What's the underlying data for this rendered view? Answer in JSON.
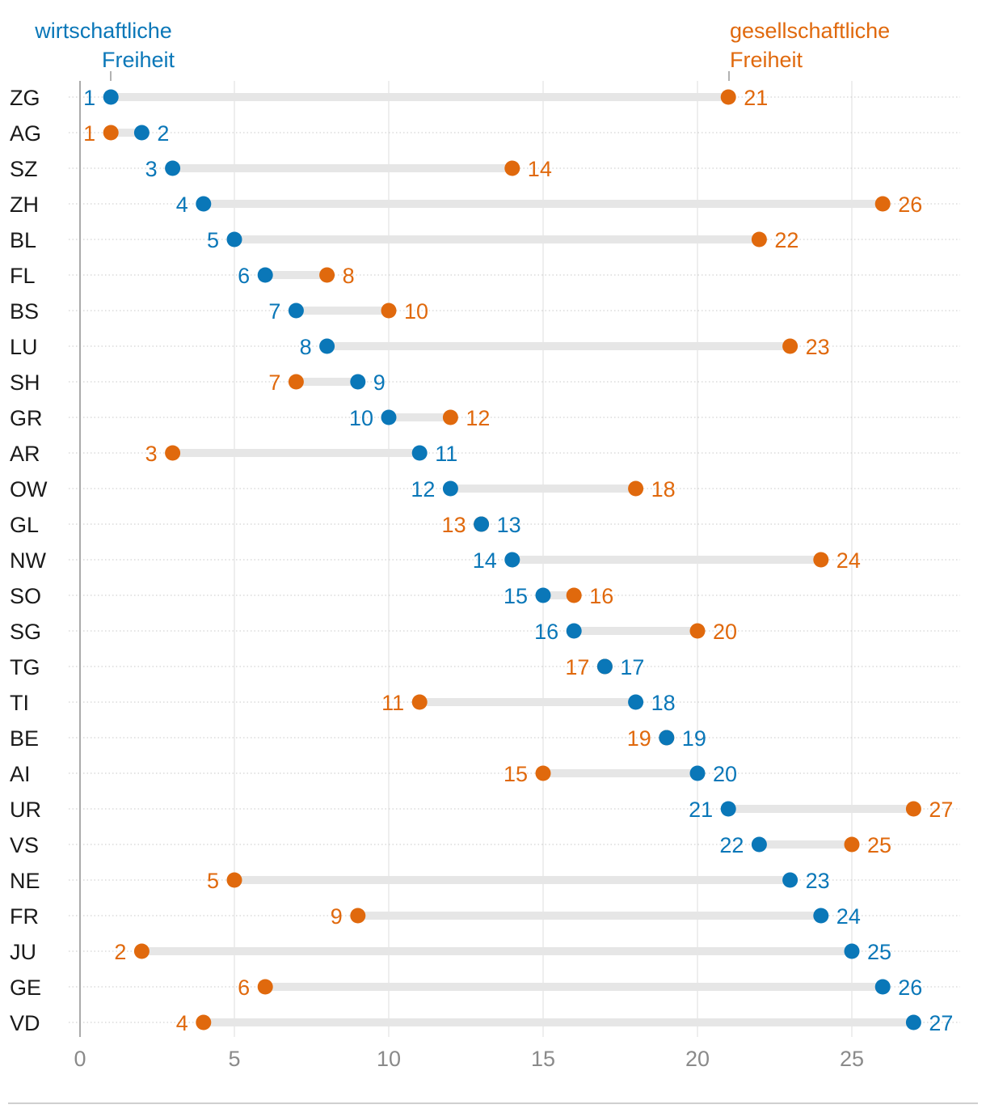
{
  "chart_data": {
    "type": "dumbbell",
    "title": "",
    "xlabel": "",
    "ylabel": "",
    "xlim": [
      0,
      28
    ],
    "xticks": [
      0,
      5,
      10,
      15,
      20,
      25
    ],
    "colors": {
      "economic": "#0a77b8",
      "social": "#e0690d",
      "connector": "#e6e6e6"
    },
    "legend": {
      "economic_line1": "wirtschaftliche",
      "economic_line2": "Freiheit",
      "social_line1": "gesellschaftliche",
      "social_line2": "Freiheit"
    },
    "series": [
      {
        "name": "wirtschaftliche Freiheit",
        "key": "economic"
      },
      {
        "name": "gesellschaftliche Freiheit",
        "key": "social"
      }
    ],
    "categories": [
      "ZG",
      "AG",
      "SZ",
      "ZH",
      "BL",
      "FL",
      "BS",
      "LU",
      "SH",
      "GR",
      "AR",
      "OW",
      "GL",
      "NW",
      "SO",
      "SG",
      "TG",
      "TI",
      "BE",
      "AI",
      "UR",
      "VS",
      "NE",
      "FR",
      "JU",
      "GE",
      "VD"
    ],
    "economic": [
      1,
      2,
      3,
      4,
      5,
      6,
      7,
      8,
      9,
      10,
      11,
      12,
      13,
      14,
      15,
      16,
      17,
      18,
      19,
      20,
      21,
      22,
      23,
      24,
      25,
      26,
      27
    ],
    "social": [
      21,
      1,
      14,
      26,
      22,
      8,
      10,
      23,
      7,
      12,
      3,
      18,
      13,
      24,
      16,
      20,
      17,
      11,
      19,
      15,
      27,
      25,
      5,
      9,
      2,
      6,
      4
    ]
  }
}
